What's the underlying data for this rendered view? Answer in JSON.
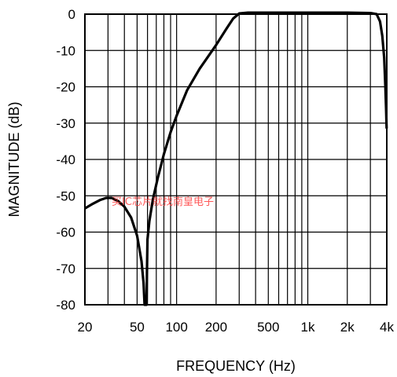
{
  "chart_data": {
    "type": "line",
    "xscale": "log",
    "xlim": [
      20,
      4000
    ],
    "ylim": [
      -80,
      0
    ],
    "xlabel": "FREQUENCY (Hz)",
    "ylabel": "MAGNITUDE (dB)",
    "grid": true,
    "x_tick_labels": [
      {
        "value": 20,
        "label": "20"
      },
      {
        "value": 50,
        "label": "50"
      },
      {
        "value": 100,
        "label": "100"
      },
      {
        "value": 200,
        "label": "200"
      },
      {
        "value": 500,
        "label": "500"
      },
      {
        "value": 1000,
        "label": "1k"
      },
      {
        "value": 2000,
        "label": "2k"
      },
      {
        "value": 4000,
        "label": "4k"
      }
    ],
    "x_gridlines": [
      30,
      40,
      50,
      60,
      70,
      80,
      90,
      100,
      200,
      300,
      400,
      500,
      600,
      700,
      800,
      900,
      1000,
      2000,
      3000,
      4000
    ],
    "y_ticks": [
      0,
      -10,
      -20,
      -30,
      -40,
      -50,
      -60,
      -70,
      -80
    ],
    "series": [
      {
        "color": "#000000",
        "points": [
          [
            20,
            -53.5
          ],
          [
            23,
            -52.2
          ],
          [
            26,
            -51.2
          ],
          [
            29,
            -50.6
          ],
          [
            32,
            -50.6
          ],
          [
            36,
            -51.5
          ],
          [
            40,
            -53.0
          ],
          [
            45,
            -56.0
          ],
          [
            50,
            -61.0
          ],
          [
            54,
            -68.0
          ],
          [
            56,
            -74.0
          ],
          [
            57,
            -80.0
          ],
          [
            59,
            -80.0
          ],
          [
            59.5,
            -70.0
          ],
          [
            60,
            -62.0
          ],
          [
            62,
            -57.0
          ],
          [
            66,
            -51.0
          ],
          [
            72,
            -45.0
          ],
          [
            80,
            -38.5
          ],
          [
            90,
            -32.5
          ],
          [
            100,
            -28.0
          ],
          [
            120,
            -21.0
          ],
          [
            150,
            -15.0
          ],
          [
            200,
            -8.5
          ],
          [
            240,
            -4.0
          ],
          [
            270,
            -1.2
          ],
          [
            300,
            0.2
          ],
          [
            350,
            0.4
          ],
          [
            500,
            0.4
          ],
          [
            1000,
            0.4
          ],
          [
            2000,
            0.4
          ],
          [
            3000,
            0.3
          ],
          [
            3350,
            0.0
          ],
          [
            3550,
            -2.0
          ],
          [
            3700,
            -6.0
          ],
          [
            3820,
            -12.0
          ],
          [
            3900,
            -20.0
          ],
          [
            3950,
            -26.0
          ],
          [
            3990,
            -31.5
          ]
        ]
      }
    ]
  },
  "watermark": "买IC芯片就找南皇电子"
}
